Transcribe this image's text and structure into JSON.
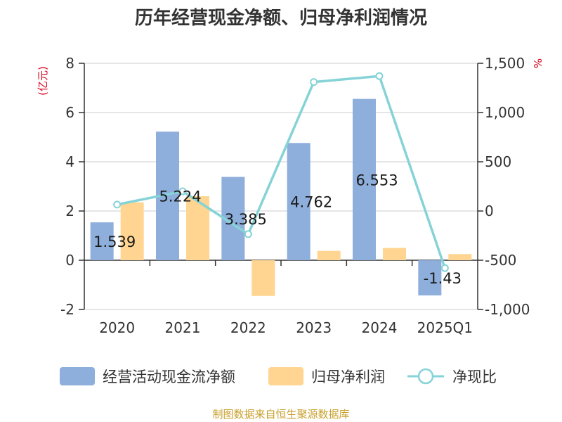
{
  "colors": {
    "bar_cashflow": "#8eaedc",
    "bar_profit": "#ffd591",
    "line_ratio": "#86d3d7",
    "axis": "#333333",
    "grid": "#cccccc",
    "unit": "#d9001b",
    "source": "#c8a02c"
  },
  "chart_data": {
    "type": "bar",
    "title": "历年经营现金净额、归母净利润情况",
    "categories": [
      "2020",
      "2021",
      "2022",
      "2023",
      "2024",
      "2025Q1"
    ],
    "left_axis": {
      "unit_label": "(亿元)",
      "ylim": [
        -2,
        8
      ],
      "ticks": [
        "8",
        "6",
        "4",
        "2",
        "0",
        "-2"
      ]
    },
    "right_axis": {
      "unit_label": "%",
      "ylim": [
        -1000,
        1500
      ],
      "ticks": [
        "1,500",
        "1,000",
        "500",
        "0",
        "-500",
        "-1,000"
      ]
    },
    "series": [
      {
        "name": "经营活动现金流净额",
        "kind": "bar",
        "axis": "left",
        "values": [
          1.539,
          5.224,
          3.385,
          4.762,
          6.553,
          -1.43
        ],
        "labels": [
          "1.539",
          "5.224",
          "3.385",
          "4.762",
          "6.553",
          "-1.43"
        ]
      },
      {
        "name": "归母净利润",
        "kind": "bar",
        "axis": "left",
        "values": [
          2.35,
          2.6,
          -1.45,
          0.38,
          0.5,
          0.25
        ]
      },
      {
        "name": "净现比",
        "kind": "line",
        "axis": "right",
        "values": [
          65,
          200,
          -235,
          1310,
          1370,
          -580
        ]
      }
    ],
    "legend_position": "bottom",
    "grid": true,
    "source": "制图数据来自恒生聚源数据库"
  }
}
